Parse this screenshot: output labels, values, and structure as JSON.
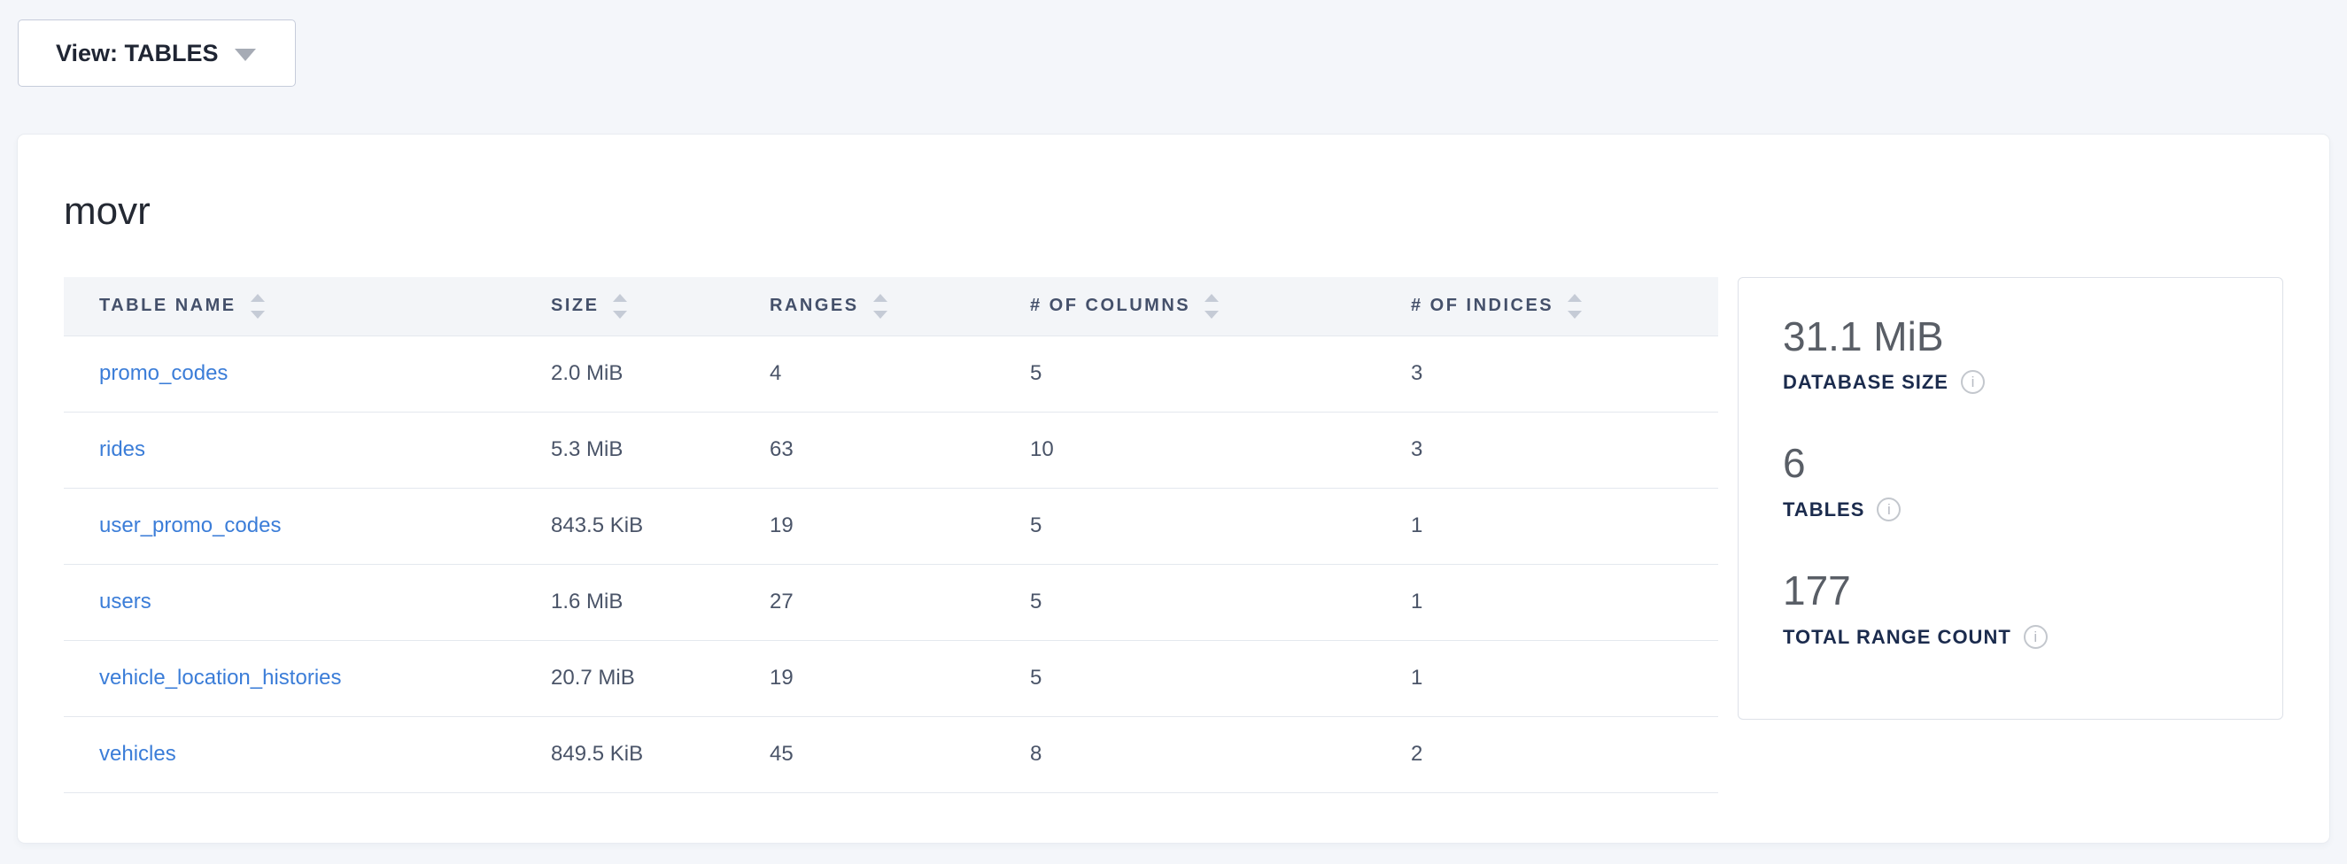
{
  "view_selector": {
    "label": "View: TABLES"
  },
  "database": {
    "name": "movr"
  },
  "table": {
    "columns": [
      {
        "label": "TABLE NAME"
      },
      {
        "label": "SIZE"
      },
      {
        "label": "RANGES"
      },
      {
        "label": "# OF COLUMNS"
      },
      {
        "label": "# OF INDICES"
      }
    ],
    "rows": [
      {
        "name": "promo_codes",
        "size": "2.0 MiB",
        "ranges": "4",
        "columns": "5",
        "indices": "3"
      },
      {
        "name": "rides",
        "size": "5.3 MiB",
        "ranges": "63",
        "columns": "10",
        "indices": "3"
      },
      {
        "name": "user_promo_codes",
        "size": "843.5 KiB",
        "ranges": "19",
        "columns": "5",
        "indices": "1"
      },
      {
        "name": "users",
        "size": "1.6 MiB",
        "ranges": "27",
        "columns": "5",
        "indices": "1"
      },
      {
        "name": "vehicle_location_histories",
        "size": "20.7 MiB",
        "ranges": "19",
        "columns": "5",
        "indices": "1"
      },
      {
        "name": "vehicles",
        "size": "849.5 KiB",
        "ranges": "45",
        "columns": "8",
        "indices": "2"
      }
    ]
  },
  "summary": {
    "stats": [
      {
        "value": "31.1 MiB",
        "label": "DATABASE SIZE"
      },
      {
        "value": "6",
        "label": "TABLES"
      },
      {
        "value": "177",
        "label": "TOTAL RANGE COUNT"
      }
    ]
  },
  "icons": {
    "info_glyph": "i"
  },
  "colors": {
    "page_bg": "#f4f6fa",
    "card_bg": "#ffffff",
    "table_header_bg": "#f3f5f8",
    "link_blue": "#3b7dd8",
    "row_border": "#e4e8ee",
    "header_text": "#44506a",
    "stat_value": "#595e66",
    "stat_label": "#1b2b4d",
    "button_text": "#1f2533",
    "sort_arrow": "#c5cbd6"
  }
}
